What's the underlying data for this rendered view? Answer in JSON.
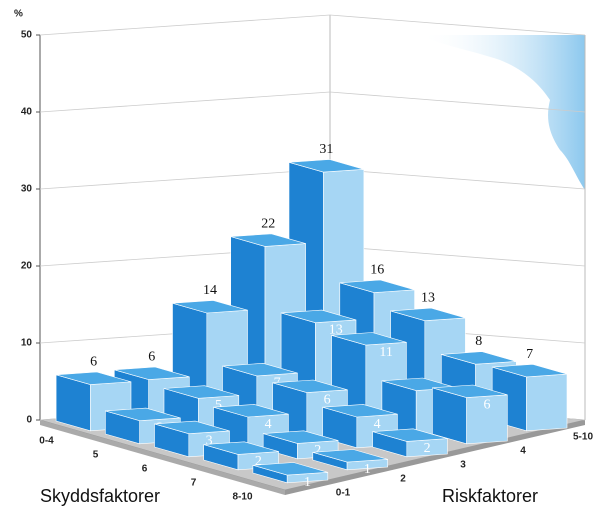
{
  "chart_data": {
    "type": "bar3d",
    "y_label": "%",
    "ylim": [
      0,
      50
    ],
    "yticks": [
      0,
      10,
      20,
      30,
      40,
      50
    ],
    "x_axis_title": "Skyddsfaktorer",
    "x_categories": [
      "0-4",
      "5",
      "6",
      "7",
      "8-10"
    ],
    "z_axis_title": "Riskfaktorer",
    "z_categories": [
      "0-1",
      "2",
      "3",
      "4",
      "5-10"
    ],
    "values": [
      [
        6,
        6,
        14,
        22,
        31
      ],
      [
        3,
        5,
        7,
        13,
        16
      ],
      [
        3,
        4,
        6,
        11,
        13
      ],
      [
        2,
        2,
        4,
        6,
        8
      ],
      [
        1,
        1,
        2,
        6,
        7
      ]
    ],
    "color": "#1e82d2"
  }
}
